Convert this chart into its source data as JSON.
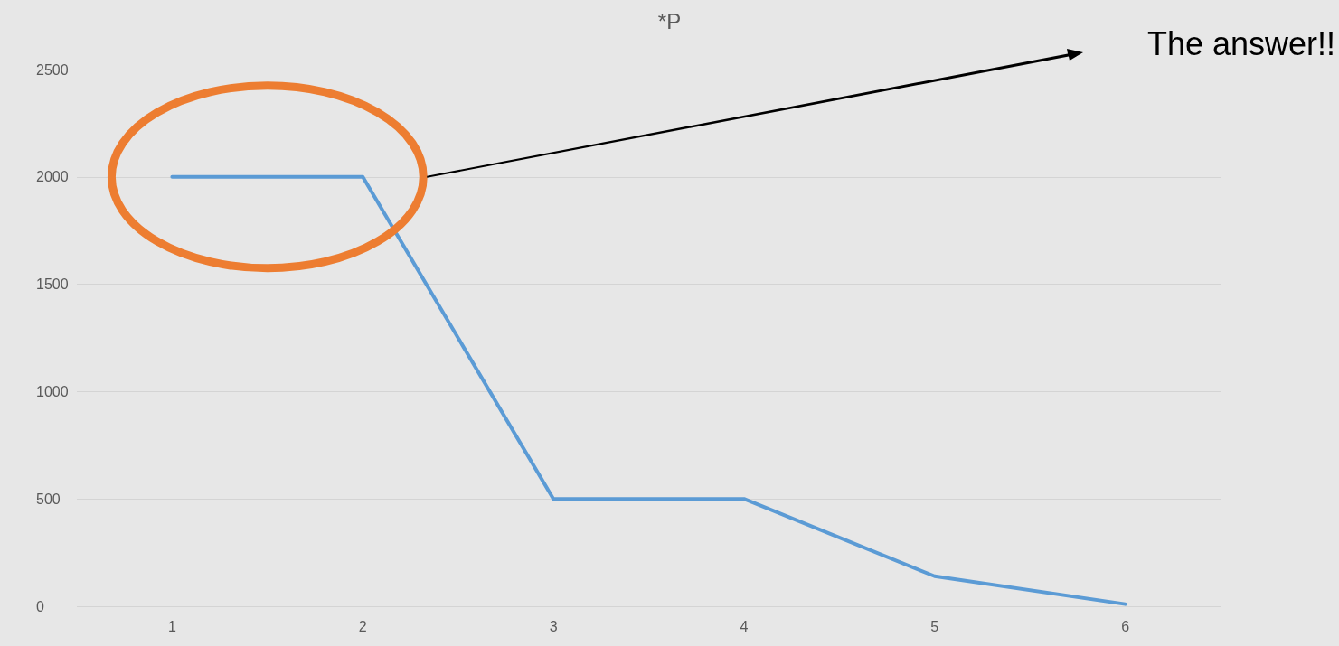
{
  "chart_data": {
    "type": "line",
    "title": "*P",
    "categories": [
      "1",
      "2",
      "3",
      "4",
      "5",
      "6"
    ],
    "values": [
      2000,
      2000,
      500,
      500,
      140,
      10
    ],
    "color": "#5b9bd5",
    "ylim": [
      0,
      2500
    ],
    "yticks": [
      0,
      500,
      1000,
      1500,
      2000,
      2500
    ],
    "grid": "y",
    "marker": "none",
    "line_style": "solid",
    "annotations": [
      "The answer!!"
    ]
  }
}
